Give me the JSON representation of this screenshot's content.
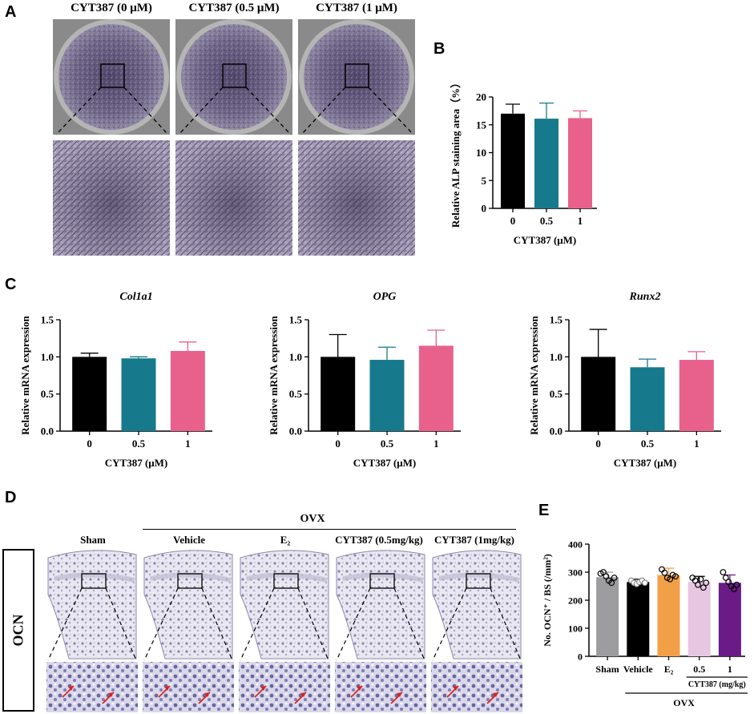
{
  "panels": {
    "a": {
      "letter": "A",
      "headers": [
        "CYT387 (0 μM)",
        "CYT387 (0.5 μM)",
        "CYT387 (1 μM)"
      ]
    },
    "b": {
      "letter": "B"
    },
    "c": {
      "letter": "C"
    },
    "d": {
      "letter": "D",
      "ovx_label": "OVX",
      "stain_label": "OCN",
      "groups": [
        "Sham",
        "Vehicle",
        "E₂",
        "CYT387 (0.5mg/kg)",
        "CYT387 (1mg/kg)"
      ]
    },
    "e": {
      "letter": "E",
      "ovx_label": "OVX",
      "cyt_label": "CYT387 (mg/kg)"
    }
  },
  "colors": {
    "black": "#000000",
    "teal": "#167a8c",
    "pink": "#e8618c",
    "gray": "#9d9d9f",
    "orange": "#f2a048",
    "lavender": "#e7c6e2",
    "purple": "#6a1b86"
  },
  "chart_data": [
    {
      "id": "B",
      "type": "bar",
      "categories": [
        "0",
        "0.5",
        "1"
      ],
      "values": [
        17.0,
        16.1,
        16.2
      ],
      "errors": [
        1.7,
        2.8,
        1.3
      ],
      "xlabel": "CYT387 (μM)",
      "ylabel": "Relative ALP staining area（%）",
      "ylim": [
        0,
        20
      ],
      "yticks": [
        "0",
        "5",
        "10",
        "15",
        "20"
      ]
    },
    {
      "id": "C1",
      "type": "bar",
      "title": "Col1a1",
      "categories": [
        "0",
        "0.5",
        "1"
      ],
      "values": [
        1.0,
        0.98,
        1.08
      ],
      "errors": [
        0.05,
        0.02,
        0.12
      ],
      "xlabel": "CYT387 (μM)",
      "ylabel": "Relative mRNA expression",
      "ylim": [
        0,
        1.5
      ],
      "yticks": [
        "0.0",
        "0.5",
        "1.0",
        "1.5"
      ]
    },
    {
      "id": "C2",
      "type": "bar",
      "title": "OPG",
      "categories": [
        "0",
        "0.5",
        "1"
      ],
      "values": [
        1.0,
        0.96,
        1.15
      ],
      "errors": [
        0.3,
        0.17,
        0.21
      ],
      "xlabel": "CYT387 (μM)",
      "ylabel": "Relative mRNA expression",
      "ylim": [
        0,
        1.5
      ],
      "yticks": [
        "0.0",
        "0.5",
        "1.0",
        "1.5"
      ]
    },
    {
      "id": "C3",
      "type": "bar",
      "title": "Runx2",
      "categories": [
        "0",
        "0.5",
        "1"
      ],
      "values": [
        1.0,
        0.86,
        0.96
      ],
      "errors": [
        0.37,
        0.11,
        0.11
      ],
      "xlabel": "CYT387 (μM)",
      "ylabel": "Relative mRNA expression",
      "ylim": [
        0,
        1.5
      ],
      "yticks": [
        "0.0",
        "0.5",
        "1.0",
        "1.5"
      ]
    },
    {
      "id": "E",
      "type": "bar",
      "categories": [
        "Sham",
        "Vehicle",
        "E₂",
        "0.5",
        "1"
      ],
      "values": [
        282,
        265,
        290,
        265,
        262
      ],
      "errors": [
        18,
        10,
        24,
        20,
        28
      ],
      "points": [
        [
          295,
          300,
          285,
          270,
          262,
          280
        ],
        [
          270,
          262,
          258,
          265,
          270,
          262
        ],
        [
          310,
          298,
          280,
          275,
          290,
          285
        ],
        [
          280,
          270,
          255,
          275,
          245,
          262
        ],
        [
          300,
          280,
          265,
          250,
          240,
          255
        ]
      ],
      "ylabel": "No. OCN⁺ / BS (/mm²)",
      "ylim": [
        0,
        400
      ],
      "yticks": [
        "0",
        "100",
        "200",
        "300",
        "400"
      ]
    }
  ]
}
